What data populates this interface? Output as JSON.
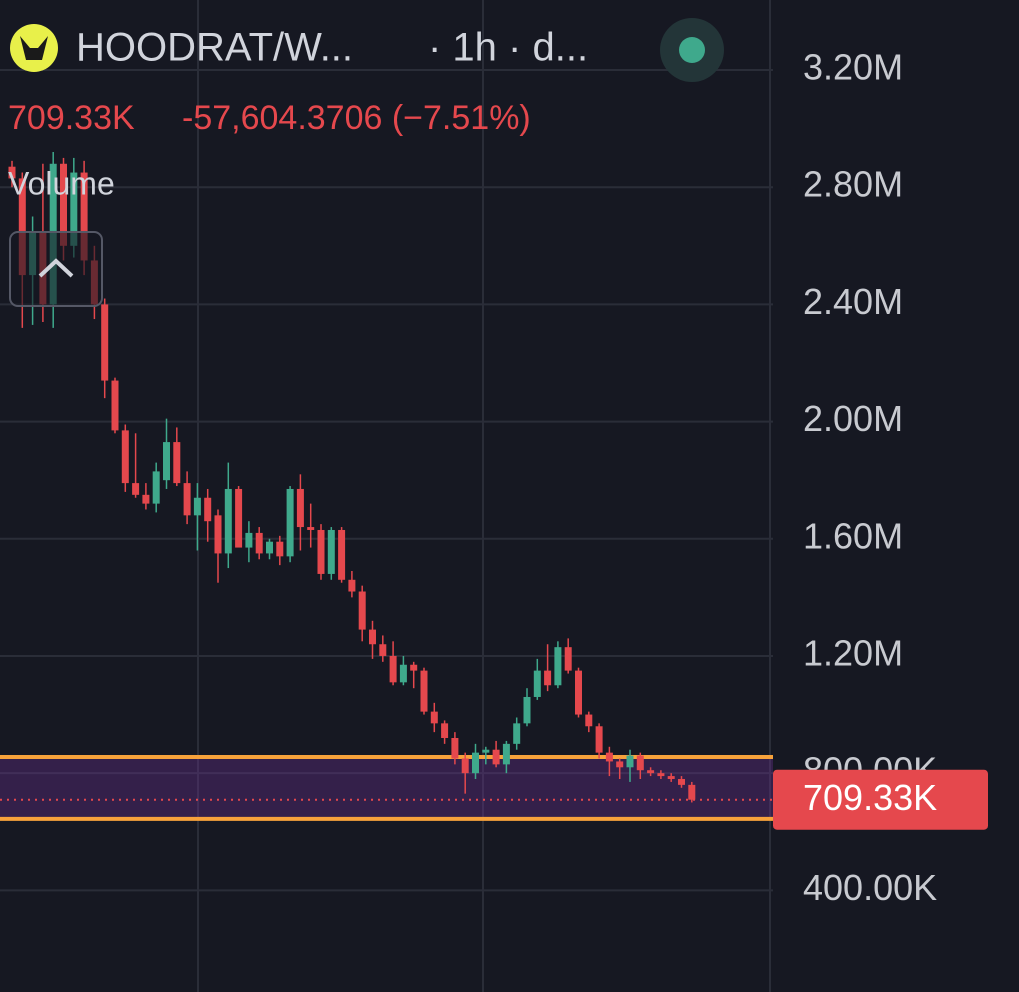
{
  "header": {
    "symbol": "HOODRAT/W...",
    "interval": "· 1h · d...",
    "change": "-57,604.3706 (−7.51%)",
    "indicator": "Volume"
  },
  "chart_data": {
    "type": "candlestick",
    "open": [
      2870000,
      2830000,
      2500000,
      2650000,
      2400000,
      2880000,
      2600000,
      2850000,
      2550000,
      2400000,
      2140000,
      1970000,
      1790000,
      1750000,
      1720000,
      1800000,
      1930000,
      1790000,
      1680000,
      1740000,
      1680000,
      1550000,
      1770000,
      1570000,
      1620000,
      1550000,
      1590000,
      1540000,
      1770000,
      1640000,
      1630000,
      1480000,
      1630000,
      1460000,
      1420000,
      1290000,
      1240000,
      1200000,
      1110000,
      1170000,
      1150000,
      1010000,
      970000,
      920000,
      850000,
      800000,
      870000,
      880000,
      830000,
      900000,
      970000,
      1060000,
      1150000,
      1100000,
      1230000,
      1150000,
      1000000,
      960000,
      870000,
      840000,
      820000,
      860000,
      810000,
      800000,
      790000,
      780000,
      760000
    ],
    "high": [
      2890000,
      2850000,
      2700000,
      2880000,
      2920000,
      2900000,
      2900000,
      2890000,
      2600000,
      2420000,
      2150000,
      1990000,
      1960000,
      1790000,
      1860000,
      2010000,
      1980000,
      1830000,
      1790000,
      1770000,
      1700000,
      1860000,
      1780000,
      1660000,
      1640000,
      1600000,
      1610000,
      1780000,
      1820000,
      1720000,
      1650000,
      1640000,
      1640000,
      1490000,
      1440000,
      1320000,
      1270000,
      1250000,
      1200000,
      1180000,
      1160000,
      1040000,
      980000,
      940000,
      870000,
      900000,
      890000,
      910000,
      910000,
      990000,
      1090000,
      1190000,
      1240000,
      1250000,
      1260000,
      1160000,
      1010000,
      970000,
      890000,
      850000,
      880000,
      870000,
      820000,
      810000,
      800000,
      790000,
      770000
    ],
    "low": [
      2800000,
      2320000,
      2330000,
      2340000,
      2320000,
      2550000,
      2560000,
      2500000,
      2350000,
      2080000,
      1960000,
      1760000,
      1740000,
      1700000,
      1690000,
      1770000,
      1780000,
      1650000,
      1560000,
      1590000,
      1450000,
      1500000,
      1580000,
      1520000,
      1530000,
      1530000,
      1510000,
      1520000,
      1560000,
      1570000,
      1460000,
      1460000,
      1450000,
      1400000,
      1250000,
      1190000,
      1180000,
      1100000,
      1100000,
      1090000,
      1000000,
      940000,
      900000,
      830000,
      730000,
      780000,
      830000,
      820000,
      800000,
      880000,
      960000,
      1050000,
      1080000,
      1090000,
      1140000,
      990000,
      940000,
      850000,
      790000,
      780000,
      770000,
      780000,
      790000,
      780000,
      770000,
      750000,
      700000
    ],
    "close": [
      2830000,
      2500000,
      2650000,
      2400000,
      2880000,
      2600000,
      2850000,
      2550000,
      2400000,
      2140000,
      1970000,
      1790000,
      1750000,
      1720000,
      1830000,
      1930000,
      1790000,
      1680000,
      1740000,
      1660000,
      1550000,
      1770000,
      1570000,
      1620000,
      1550000,
      1590000,
      1540000,
      1770000,
      1640000,
      1630000,
      1480000,
      1630000,
      1460000,
      1420000,
      1290000,
      1240000,
      1200000,
      1110000,
      1170000,
      1150000,
      1010000,
      970000,
      920000,
      850000,
      800000,
      870000,
      880000,
      830000,
      900000,
      970000,
      1060000,
      1150000,
      1100000,
      1230000,
      1150000,
      1000000,
      960000,
      870000,
      840000,
      820000,
      860000,
      810000,
      800000,
      790000,
      780000,
      760000,
      709330
    ],
    "up_color": "#3fa98c",
    "down_color": "#e5484d",
    "ylim": [
      53000,
      3439000
    ],
    "yticks": [
      {
        "value": 400000,
        "label": "400.00K"
      },
      {
        "value": 800000,
        "label": "800.00K"
      },
      {
        "value": 1200000,
        "label": "1.20M"
      },
      {
        "value": 1600000,
        "label": "1.60M"
      },
      {
        "value": 2000000,
        "label": "2.00M"
      },
      {
        "value": 2400000,
        "label": "2.40M"
      },
      {
        "value": 2800000,
        "label": "2.80M"
      },
      {
        "value": 3200000,
        "label": "3.20M"
      }
    ],
    "grid": true,
    "last_price": {
      "value": 709330,
      "label": "709.33K"
    },
    "zone": [
      644000,
      855000
    ],
    "zone_color": "#f7a23b"
  }
}
